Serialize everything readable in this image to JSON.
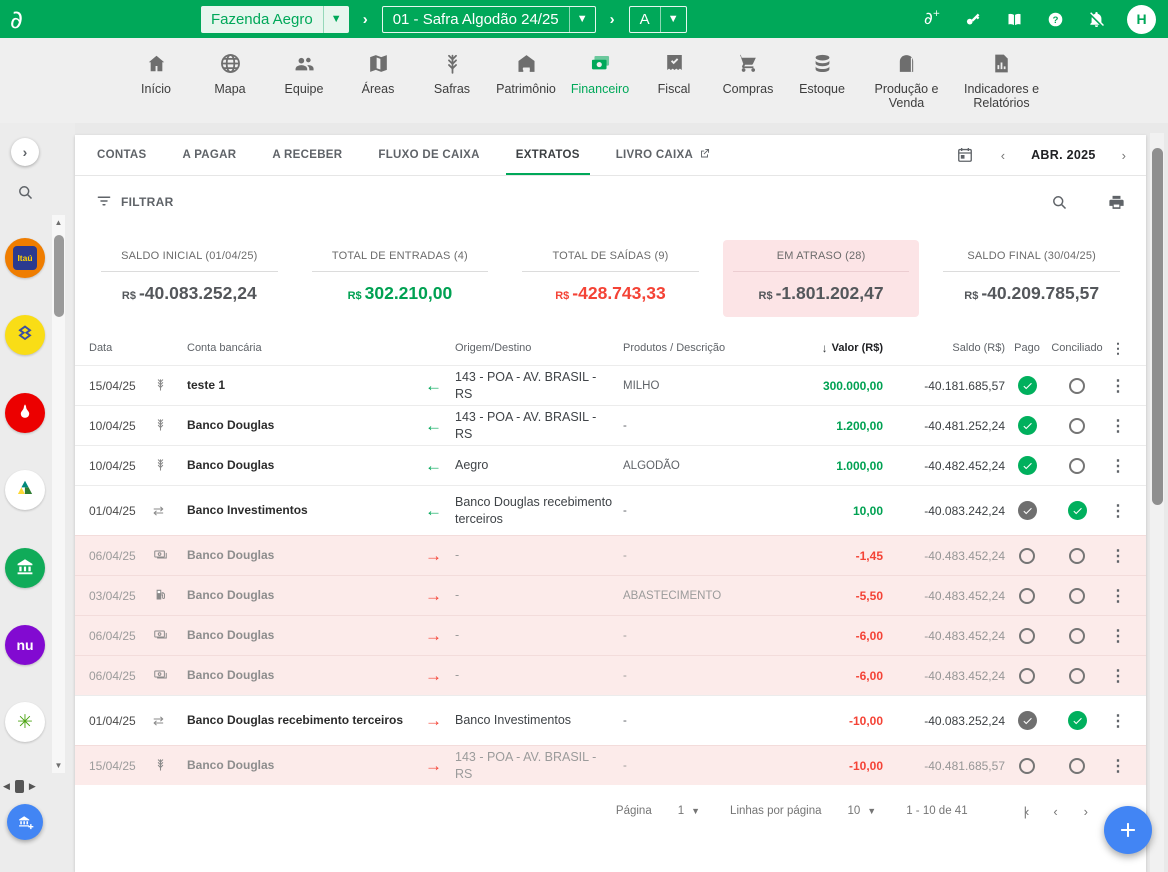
{
  "colors": {
    "primary": "#00a859",
    "positive": "#00a152",
    "negative": "#f44336",
    "overdue_bg": "#fcebea",
    "fab": "#4285f4"
  },
  "header": {
    "logo_glyph": "∂",
    "farm_selector": "Fazenda Aegro",
    "season_selector": "01 - Safra Algodão 24/25",
    "area_selector": "A",
    "crumb_separator": "›",
    "icons": [
      "add-farm",
      "key",
      "manual-book",
      "help",
      "notifications-off"
    ],
    "avatar_initial": "H"
  },
  "nav": {
    "items": [
      {
        "label": "Início",
        "icon": "home",
        "active": false,
        "wide": false
      },
      {
        "label": "Mapa",
        "icon": "globe",
        "active": false,
        "wide": false
      },
      {
        "label": "Equipe",
        "icon": "people",
        "active": false,
        "wide": false
      },
      {
        "label": "Áreas",
        "icon": "map",
        "active": false,
        "wide": false
      },
      {
        "label": "Safras",
        "icon": "wheat",
        "active": false,
        "wide": false
      },
      {
        "label": "Patrimônio",
        "icon": "barn",
        "active": false,
        "wide": false
      },
      {
        "label": "Financeiro",
        "icon": "money",
        "active": true,
        "wide": false
      },
      {
        "label": "Fiscal",
        "icon": "receipt",
        "active": false,
        "wide": false
      },
      {
        "label": "Compras",
        "icon": "cart",
        "active": false,
        "wide": false
      },
      {
        "label": "Estoque",
        "icon": "stack",
        "active": false,
        "wide": false
      },
      {
        "label": "Produção e Venda",
        "icon": "silo",
        "active": false,
        "wide": true
      },
      {
        "label": "Indicadores e Relatórios",
        "icon": "report",
        "active": false,
        "wide": true
      }
    ]
  },
  "tabs": {
    "items": [
      {
        "label": "CONTAS",
        "active": false,
        "external": false
      },
      {
        "label": "A PAGAR",
        "active": false,
        "external": false
      },
      {
        "label": "A RECEBER",
        "active": false,
        "external": false
      },
      {
        "label": "FLUXO DE CAIXA",
        "active": false,
        "external": false
      },
      {
        "label": "EXTRATOS",
        "active": true,
        "external": false
      },
      {
        "label": "LIVRO CAIXA",
        "active": false,
        "external": true
      }
    ]
  },
  "date_nav": {
    "prev": "‹",
    "month_label": "ABR. 2025",
    "next": "›"
  },
  "toolbar": {
    "filter_label": "FILTRAR"
  },
  "summary_cards": [
    {
      "label": "SALDO INICIAL (01/04/25)",
      "currency": "R$",
      "value": "-40.083.252,24",
      "tone": "neutral",
      "highlighted": false
    },
    {
      "label": "TOTAL DE ENTRADAS (4)",
      "currency": "R$",
      "value": "302.210,00",
      "tone": "pos",
      "highlighted": false
    },
    {
      "label": "TOTAL DE SAÍDAS (9)",
      "currency": "R$",
      "value": "-428.743,33",
      "tone": "neg",
      "highlighted": false
    },
    {
      "label": "EM ATRASO (28)",
      "currency": "R$",
      "value": "-1.801.202,47",
      "tone": "neutral",
      "highlighted": true
    },
    {
      "label": "SALDO FINAL (30/04/25)",
      "currency": "R$",
      "value": "-40.209.785,57",
      "tone": "neutral",
      "highlighted": false
    }
  ],
  "table": {
    "columns": {
      "date": "Data",
      "account": "Conta bancária",
      "origin": "Origem/Destino",
      "product": "Produtos / Descrição",
      "value": "Valor (R$)",
      "sort_arrow": "↓",
      "balance": "Saldo (R$)",
      "paid": "Pago",
      "reconciled": "Conciliado"
    },
    "rows": [
      {
        "date": "15/04/25",
        "icon": "wheat",
        "account": "teste 1",
        "direction": "in",
        "origin": "143 - POA - AV. BRASIL - RS",
        "product": "MILHO",
        "value": "300.000,00",
        "value_tone": "pos",
        "balance": "-40.181.685,57",
        "paid": "check-green",
        "reconciled": "empty",
        "overdue": false,
        "tall": false
      },
      {
        "date": "10/04/25",
        "icon": "wheat",
        "account": "Banco Douglas",
        "direction": "in",
        "origin": "143 - POA - AV. BRASIL - RS",
        "product": "-",
        "value": "1.200,00",
        "value_tone": "pos",
        "balance": "-40.481.252,24",
        "paid": "check-green",
        "reconciled": "empty",
        "overdue": false,
        "tall": false
      },
      {
        "date": "10/04/25",
        "icon": "wheat",
        "account": "Banco Douglas",
        "direction": "in",
        "origin": "Aegro",
        "product": "ALGODÃO",
        "value": "1.000,00",
        "value_tone": "pos",
        "balance": "-40.482.452,24",
        "paid": "check-green",
        "reconciled": "empty",
        "overdue": false,
        "tall": false
      },
      {
        "date": "01/04/25",
        "icon": "transfer",
        "account": "Banco Investimentos",
        "direction": "in",
        "origin": "Banco Douglas recebimento terceiros",
        "product": "-",
        "value": "10,00",
        "value_tone": "pos",
        "balance": "-40.083.242,24",
        "paid": "check-gray",
        "reconciled": "check-green",
        "overdue": false,
        "tall": true
      },
      {
        "date": "06/04/25",
        "icon": "money-bill",
        "account": "Banco Douglas",
        "direction": "out",
        "origin": "-",
        "product": "-",
        "value": "-1,45",
        "value_tone": "neg",
        "balance": "-40.483.452,24",
        "paid": "empty",
        "reconciled": "empty",
        "overdue": true,
        "tall": false
      },
      {
        "date": "03/04/25",
        "icon": "fuel",
        "account": "Banco Douglas",
        "direction": "out",
        "origin": "-",
        "product": "ABASTECIMENTO",
        "value": "-5,50",
        "value_tone": "neg",
        "balance": "-40.483.452,24",
        "paid": "empty",
        "reconciled": "empty",
        "overdue": true,
        "tall": false
      },
      {
        "date": "06/04/25",
        "icon": "money-bill",
        "account": "Banco Douglas",
        "direction": "out",
        "origin": "-",
        "product": "-",
        "value": "-6,00",
        "value_tone": "neg",
        "balance": "-40.483.452,24",
        "paid": "empty",
        "reconciled": "empty",
        "overdue": true,
        "tall": false
      },
      {
        "date": "06/04/25",
        "icon": "money-bill",
        "account": "Banco Douglas",
        "direction": "out",
        "origin": "-",
        "product": "-",
        "value": "-6,00",
        "value_tone": "neg",
        "balance": "-40.483.452,24",
        "paid": "empty",
        "reconciled": "empty",
        "overdue": true,
        "tall": false
      },
      {
        "date": "01/04/25",
        "icon": "transfer",
        "account": "Banco Douglas recebimento terceiros",
        "direction": "out",
        "origin": "Banco Investimentos",
        "product": "-",
        "value": "-10,00",
        "value_tone": "neg",
        "balance": "-40.083.252,24",
        "paid": "check-gray",
        "reconciled": "check-green",
        "overdue": false,
        "tall": true
      },
      {
        "date": "15/04/25",
        "icon": "wheat",
        "account": "Banco Douglas",
        "direction": "out",
        "origin": "143 - POA - AV. BRASIL - RS",
        "product": "-",
        "value": "-10,00",
        "value_tone": "neg",
        "balance": "-40.481.685,57",
        "paid": "empty",
        "reconciled": "empty",
        "overdue": true,
        "tall": false
      }
    ]
  },
  "pagination": {
    "page_label": "Página",
    "page_value": "1",
    "rows_label": "Linhas por página",
    "rows_value": "10",
    "range": "1 - 10 de 41",
    "first": "|‹",
    "prev": "‹",
    "next": "›"
  },
  "sidebar": {
    "banks": [
      {
        "name": "itau",
        "text": "Itaú",
        "bg": "#ef7d00"
      },
      {
        "name": "banco-do-brasil",
        "text": "",
        "bg": "#f9dd16"
      },
      {
        "name": "santander",
        "text": "",
        "bg": "#ec0000"
      },
      {
        "name": "cooperative-bank",
        "text": "",
        "bg": "#ffffff"
      },
      {
        "name": "generic-bank",
        "text": "",
        "bg": "#10ab59"
      },
      {
        "name": "nubank",
        "text": "nu",
        "bg": "#820ad1"
      },
      {
        "name": "sicredi",
        "text": "✳",
        "bg": "#ffffff"
      }
    ]
  }
}
